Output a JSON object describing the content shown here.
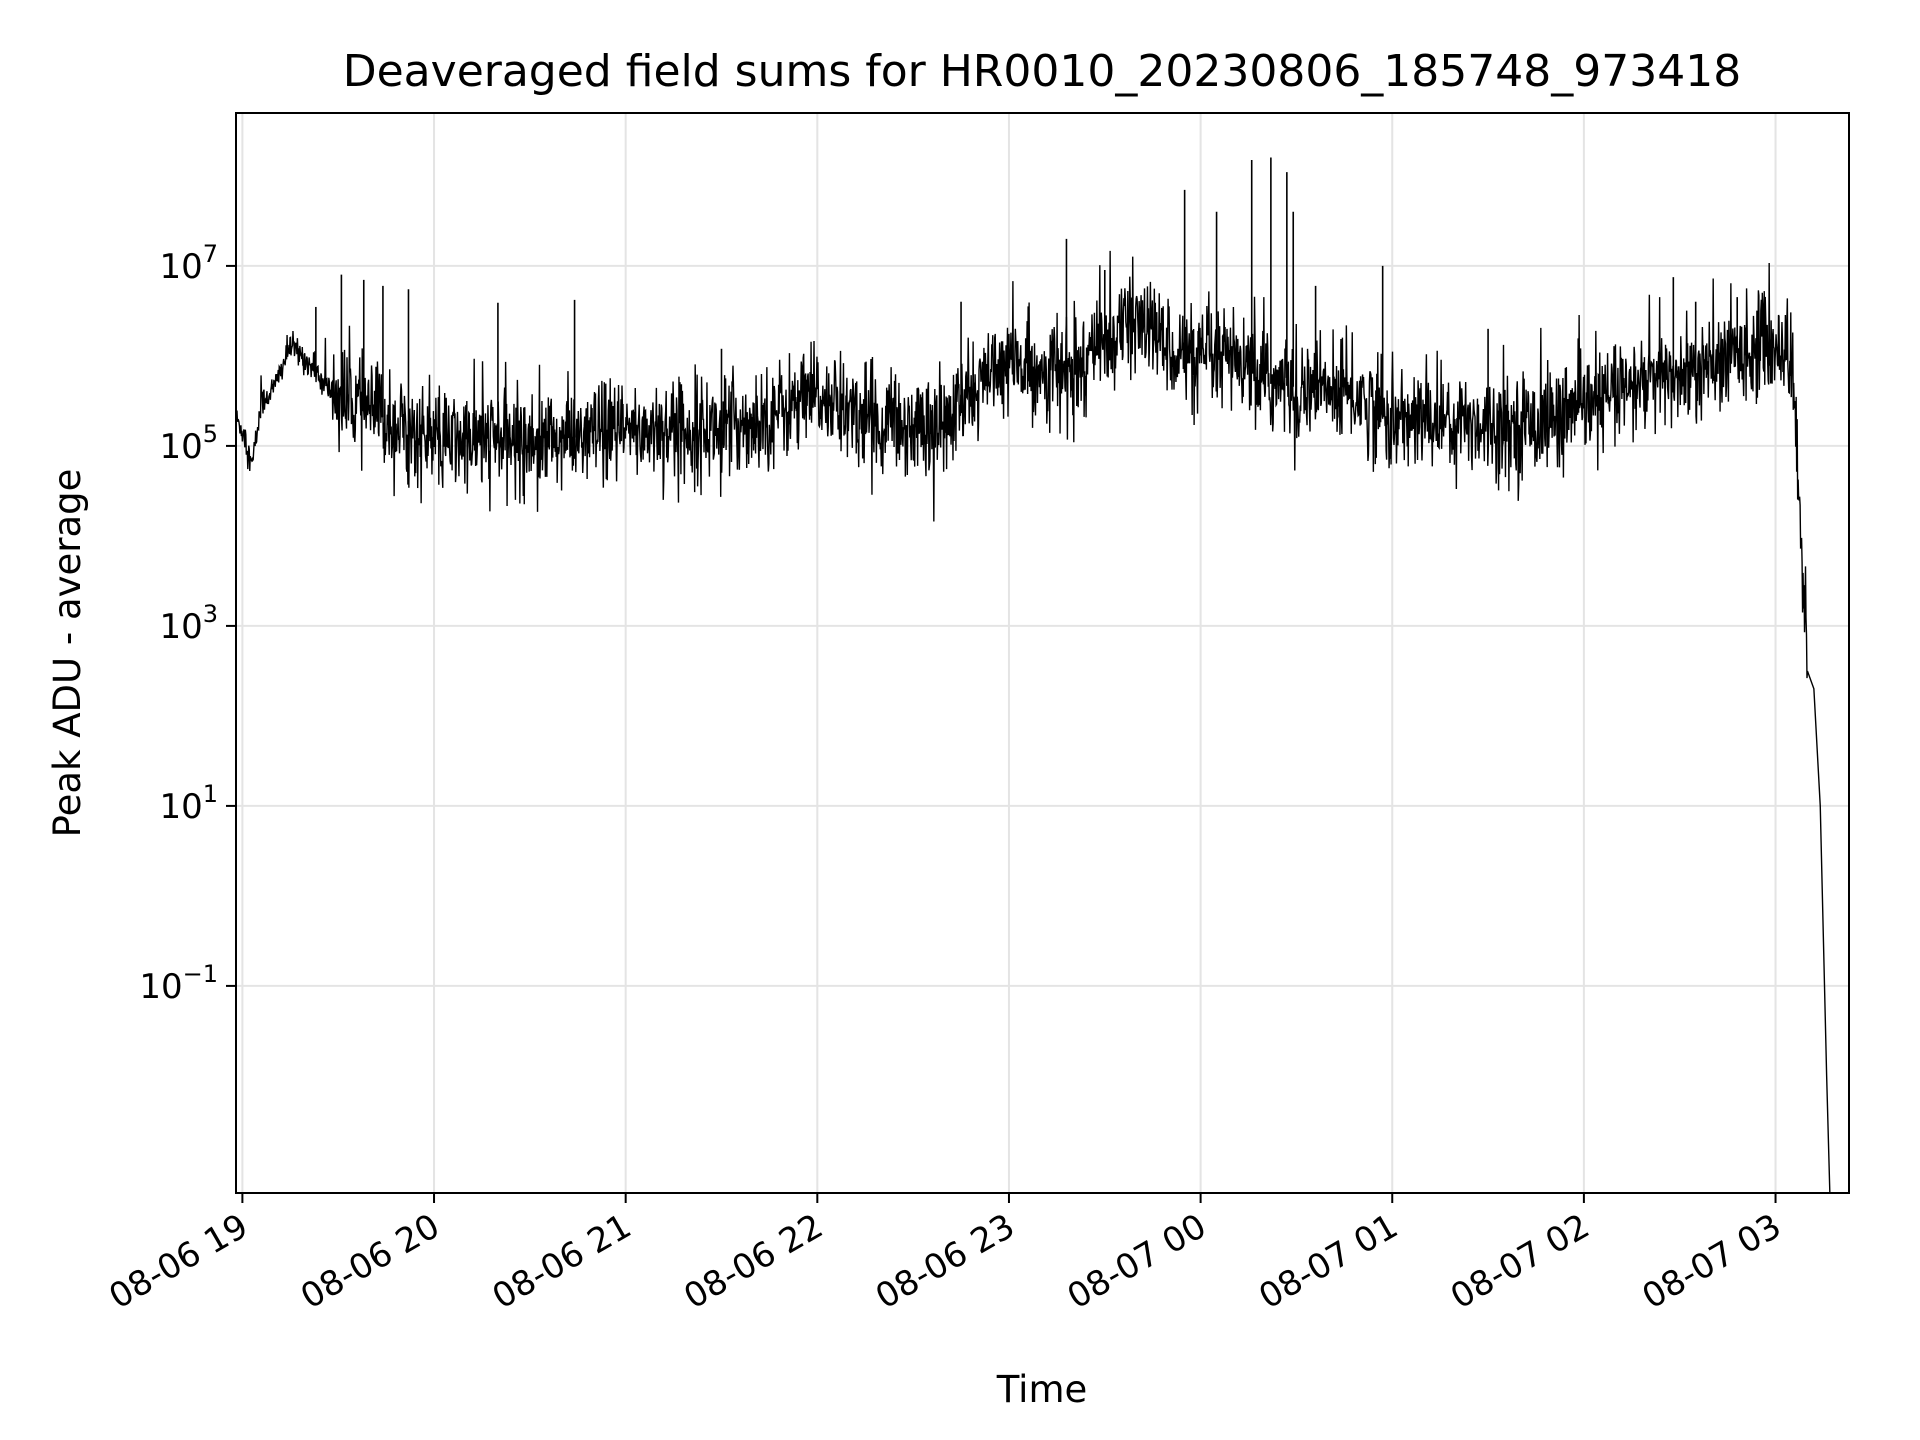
{
  "chart_data": {
    "type": "line",
    "title": "Deaveraged field sums for HR0010_20230806_185748_973418",
    "xlabel": "Time",
    "ylabel": "Peak ADU - average",
    "yscale": "log",
    "ylim": [
      0.0005,
      500000000
    ],
    "xlim": [
      "2023-08-06 18:58",
      "2023-08-07 03:23"
    ],
    "grid": true,
    "line_color": "#000000",
    "x_ticks": [
      {
        "t": "2023-08-06 19:00",
        "label": "08-06 19"
      },
      {
        "t": "2023-08-06 20:00",
        "label": "08-06 20"
      },
      {
        "t": "2023-08-06 21:00",
        "label": "08-06 21"
      },
      {
        "t": "2023-08-06 22:00",
        "label": "08-06 22"
      },
      {
        "t": "2023-08-06 23:00",
        "label": "08-06 23"
      },
      {
        "t": "2023-08-07 00:00",
        "label": "08-07 00"
      },
      {
        "t": "2023-08-07 01:00",
        "label": "08-07 01"
      },
      {
        "t": "2023-08-07 02:00",
        "label": "08-07 02"
      },
      {
        "t": "2023-08-07 03:00",
        "label": "08-07 03"
      }
    ],
    "y_ticks": [
      {
        "value": 10000000,
        "base": "10",
        "exp": "7"
      },
      {
        "value": 100000,
        "base": "10",
        "exp": "5"
      },
      {
        "value": 1000,
        "base": "10",
        "exp": "3"
      },
      {
        "value": 10,
        "base": "10",
        "exp": "1"
      },
      {
        "value": 0.1,
        "base": "10",
        "exp": "−1"
      }
    ],
    "series": [
      {
        "x": [
          "2023-08-06 18:58",
          "2023-08-06 19:00",
          "2023-08-06 19:03",
          "2023-08-06 19:06",
          "2023-08-06 19:10",
          "2023-08-06 19:15",
          "2023-08-06 19:20",
          "2023-08-06 19:25",
          "2023-08-06 19:30",
          "2023-08-06 19:35",
          "2023-08-06 19:40",
          "2023-08-06 19:45",
          "2023-08-06 19:50",
          "2023-08-06 19:55",
          "2023-08-06 20:00",
          "2023-08-06 20:10",
          "2023-08-06 20:20",
          "2023-08-06 20:30",
          "2023-08-06 20:40",
          "2023-08-06 20:50",
          "2023-08-06 21:00",
          "2023-08-06 21:10",
          "2023-08-06 21:20",
          "2023-08-06 21:30",
          "2023-08-06 21:40",
          "2023-08-06 21:50",
          "2023-08-06 22:00",
          "2023-08-06 22:10",
          "2023-08-06 22:20",
          "2023-08-06 22:30",
          "2023-08-06 22:40",
          "2023-08-06 22:50",
          "2023-08-06 23:00",
          "2023-08-06 23:10",
          "2023-08-06 23:20",
          "2023-08-06 23:30",
          "2023-08-06 23:40",
          "2023-08-06 23:50",
          "2023-08-07 00:00",
          "2023-08-07 00:10",
          "2023-08-07 00:20",
          "2023-08-07 00:30",
          "2023-08-07 00:40",
          "2023-08-07 00:50",
          "2023-08-07 01:00",
          "2023-08-07 01:10",
          "2023-08-07 01:20",
          "2023-08-07 01:30",
          "2023-08-07 01:40",
          "2023-08-07 01:50",
          "2023-08-07 02:00",
          "2023-08-07 02:10",
          "2023-08-07 02:20",
          "2023-08-07 02:30",
          "2023-08-07 02:40",
          "2023-08-07 02:50",
          "2023-08-07 03:00",
          "2023-08-07 03:05",
          "2023-08-07 03:08",
          "2023-08-07 03:10",
          "2023-08-07 03:12",
          "2023-08-07 03:14",
          "2023-08-07 03:16",
          "2023-08-07 03:17"
        ],
        "y": [
          200000,
          150000,
          60000,
          300000,
          450000,
          1300000,
          900000,
          500000,
          350000,
          300000,
          250000,
          200000,
          160000,
          130000,
          110000,
          110000,
          120000,
          115000,
          120000,
          130000,
          140000,
          160000,
          150000,
          160000,
          190000,
          260000,
          350000,
          250000,
          180000,
          170000,
          160000,
          450000,
          800000,
          700000,
          600000,
          1500000,
          2500000,
          1300000,
          800000,
          900000,
          500000,
          450000,
          400000,
          350000,
          180000,
          200000,
          190000,
          180000,
          170000,
          200000,
          250000,
          380000,
          500000,
          600000,
          700000,
          1200000,
          1300000,
          1000000,
          10000,
          400,
          200,
          10,
          0.01,
          0.0005
        ],
        "spikes": [
          {
            "t": "2023-08-06 19:23",
            "y": 3500000
          },
          {
            "t": "2023-08-06 19:31",
            "y": 8000000
          },
          {
            "t": "2023-08-06 19:38",
            "y": 7000000
          },
          {
            "t": "2023-08-06 19:44",
            "y": 6000000
          },
          {
            "t": "2023-08-06 19:52",
            "y": 5500000
          },
          {
            "t": "2023-08-06 20:20",
            "y": 3900000
          },
          {
            "t": "2023-08-06 20:44",
            "y": 4200000
          },
          {
            "t": "2023-08-06 21:30",
            "y": 1200000
          },
          {
            "t": "2023-08-06 22:45",
            "y": 4000000
          },
          {
            "t": "2023-08-06 23:18",
            "y": 20000000
          },
          {
            "t": "2023-08-06 23:30",
            "y": 9000000
          },
          {
            "t": "2023-08-06 23:55",
            "y": 70000000
          },
          {
            "t": "2023-08-07 00:05",
            "y": 40000000
          },
          {
            "t": "2023-08-07 00:16",
            "y": 150000000
          },
          {
            "t": "2023-08-07 00:22",
            "y": 160000000
          },
          {
            "t": "2023-08-07 00:27",
            "y": 110000000
          },
          {
            "t": "2023-08-07 00:29",
            "y": 40000000
          },
          {
            "t": "2023-08-07 00:36",
            "y": 6000000
          },
          {
            "t": "2023-08-07 00:57",
            "y": 10000000
          },
          {
            "t": "2023-08-07 01:30",
            "y": 2000000
          },
          {
            "t": "2023-08-07 02:28",
            "y": 7500000
          },
          {
            "t": "2023-08-07 02:35",
            "y": 4000000
          },
          {
            "t": "2023-08-07 02:48",
            "y": 4500000
          }
        ]
      }
    ]
  }
}
